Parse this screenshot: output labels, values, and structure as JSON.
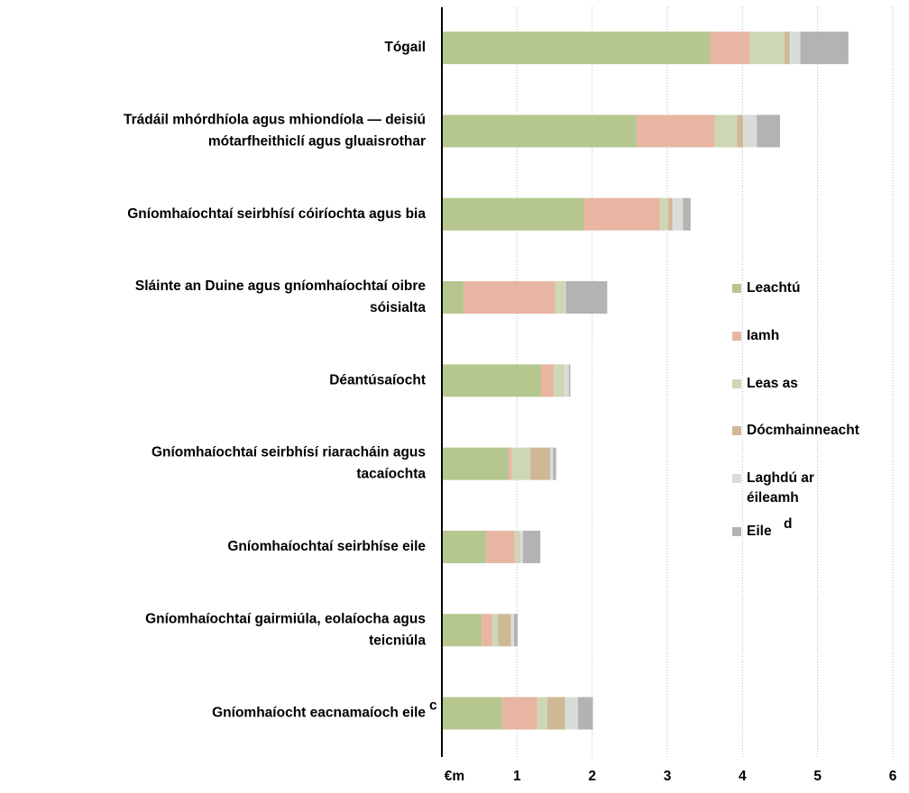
{
  "chart_data": {
    "type": "stacked_horizontal_bar",
    "categories": [
      "Tógail",
      "Trádáil mhórdhíola agus mhiondíola — deisiú\nmótarfheithiclí agus gluaisrothar",
      "Gníomhaíochtaí seirbhísí cóiríochta agus bia",
      "Sláinte an Duine agus gníomhaíochtaí oibre\nsóisialta",
      "Déantúsaíocht",
      "Gníomhaíochtaí seirbhísí riaracháin agus\ntacaíochta",
      "Gníomhaíochtaí seirbhíse eile",
      "Gníomhaíochtaí gairmiúla, eolaíocha agus\nteicniúla",
      "Gníomhaíocht eacnamaíoch eile"
    ],
    "category_notes": [
      null,
      null,
      null,
      null,
      null,
      null,
      null,
      null,
      "c"
    ],
    "series": [
      {
        "name": "Leachtú",
        "color": "#b5c78e",
        "values": [
          3.57,
          2.59,
          1.89,
          0.29,
          1.32,
          0.89,
          0.59,
          0.53,
          0.8
        ]
      },
      {
        "name": "Iamh",
        "color": "#e8b5a3",
        "values": [
          0.53,
          1.04,
          1.01,
          1.22,
          0.17,
          0.04,
          0.38,
          0.14,
          0.47
        ]
      },
      {
        "name": "Leas as",
        "color": "#cdd7b5",
        "values": [
          0.46,
          0.3,
          0.11,
          0.13,
          0.12,
          0.25,
          0.05,
          0.08,
          0.13
        ]
      },
      {
        "name": "Dócmhainneacht",
        "color": "#cfb896",
        "values": [
          0.07,
          0.08,
          0.06,
          0,
          0.01,
          0.26,
          0.01,
          0.17,
          0.24
        ]
      },
      {
        "name": "Laghdú ar\néileamh",
        "color": "#d9ddd9",
        "values": [
          0.14,
          0.18,
          0.14,
          0.01,
          0.07,
          0.04,
          0.05,
          0.04,
          0.17
        ]
      },
      {
        "name": "Eile",
        "note": "d",
        "color": "#b3b3b3",
        "values": [
          0.64,
          0.31,
          0.1,
          0.55,
          0.02,
          0.04,
          0.23,
          0.05,
          0.2
        ]
      }
    ],
    "xlim": [
      0,
      6
    ],
    "xticks": [
      {
        "value": 0,
        "label": "€m"
      },
      1,
      2,
      3,
      4,
      5,
      6
    ],
    "grid": true
  }
}
